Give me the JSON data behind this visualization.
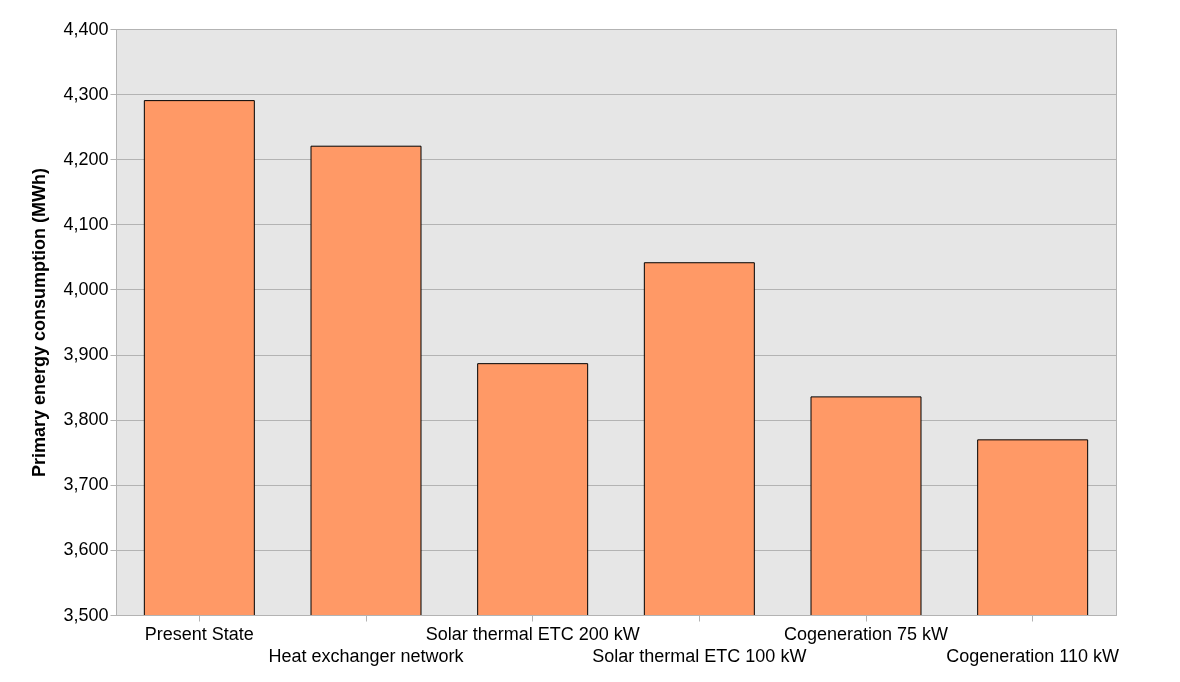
{
  "chart_data": {
    "type": "bar",
    "ylabel": "Primary energy consumption (MWh)",
    "categories": [
      "Present State",
      "Heat exchanger network",
      "Solar thermal ETC 200 kW",
      "Solar thermal ETC 100 kW",
      "Cogeneration 75 kW",
      "Cogeneration 110 kW"
    ],
    "values": [
      4290,
      4220,
      3886,
      4041,
      3835,
      3769
    ],
    "color": "#ff9966",
    "ylim": [
      3500,
      4400
    ],
    "yticks": [
      {
        "value": 3500,
        "label": "3,500"
      },
      {
        "value": 3600,
        "label": "3,600"
      },
      {
        "value": 3700,
        "label": "3,700"
      },
      {
        "value": 3800,
        "label": "3,800"
      },
      {
        "value": 3900,
        "label": "3,900"
      },
      {
        "value": 4000,
        "label": "4,000"
      },
      {
        "value": 4100,
        "label": "4,100"
      },
      {
        "value": 4200,
        "label": "4,200"
      },
      {
        "value": 4300,
        "label": "4,300"
      },
      {
        "value": 4400,
        "label": "4,400"
      }
    ],
    "grid": "y"
  }
}
